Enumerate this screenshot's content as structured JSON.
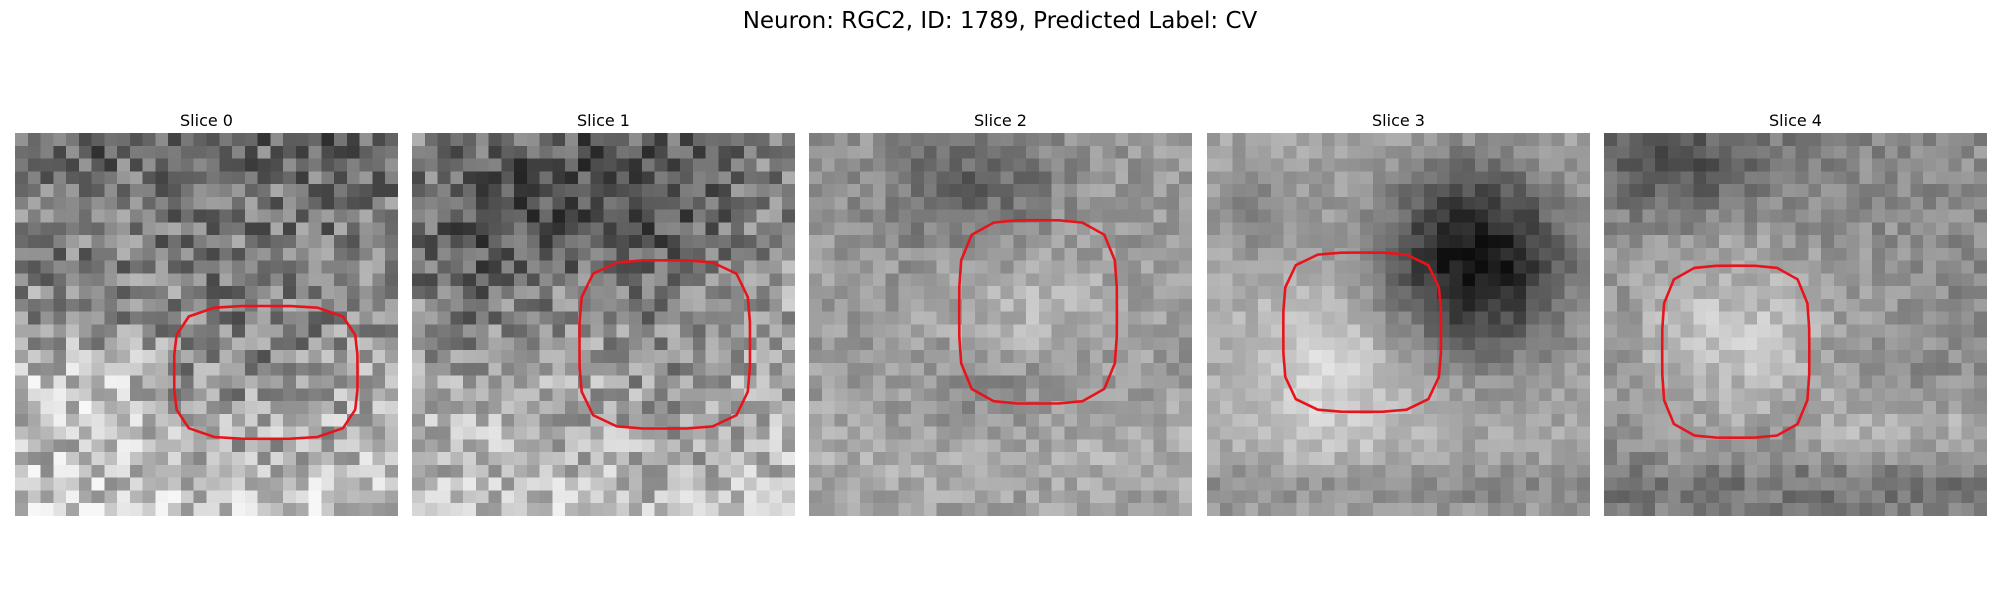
{
  "figure": {
    "title": "Neuron: RGC2, ID: 1789, Predicted Label: CV"
  },
  "colors": {
    "contour": "#e8141c",
    "background": "#ffffff",
    "colormap": "gray"
  },
  "panels": [
    {
      "title": "Slice 0",
      "image_kind": "grayscale-microscopy"
    },
    {
      "title": "Slice 1",
      "image_kind": "grayscale-microscopy"
    },
    {
      "title": "Slice 2",
      "image_kind": "grayscale-microscopy"
    },
    {
      "title": "Slice 3",
      "image_kind": "grayscale-microscopy"
    },
    {
      "title": "Slice 4",
      "image_kind": "grayscale-microscopy"
    }
  ]
}
